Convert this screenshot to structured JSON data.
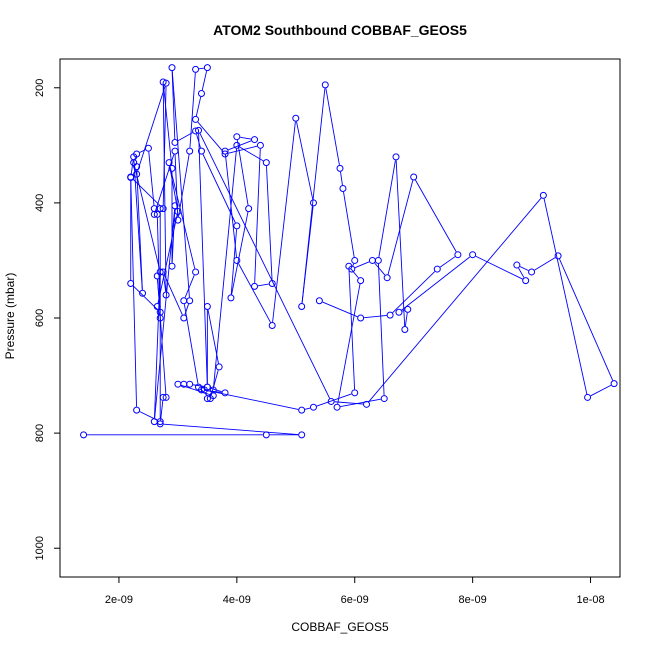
{
  "chart_data": {
    "type": "line",
    "title": "ATOM2 Southbound COBBAF_GEOS5",
    "xlabel": "COBBAF_GEOS5",
    "ylabel": "Pressure (mbar)",
    "xlim": [
      1e-09,
      1.05e-08
    ],
    "ylim": [
      1050,
      150
    ],
    "y_reversed": true,
    "x_ticks": [
      {
        "value": 2e-09,
        "label": "2e-09"
      },
      {
        "value": 4e-09,
        "label": "4e-09"
      },
      {
        "value": 6e-09,
        "label": "6e-09"
      },
      {
        "value": 8e-09,
        "label": "8e-09"
      },
      {
        "value": 1e-08,
        "label": "1e-08"
      }
    ],
    "y_ticks": [
      {
        "value": 200,
        "label": "200"
      },
      {
        "value": 400,
        "label": "400"
      },
      {
        "value": 600,
        "label": "600"
      },
      {
        "value": 800,
        "label": "800"
      },
      {
        "value": 1000,
        "label": "1000"
      }
    ],
    "grid": false,
    "legend": "none",
    "series_color": "#0000ff",
    "marker": "open-circle",
    "series": [
      {
        "x": [
          1.4e-09,
          4.5e-09,
          5.1e-09,
          2.7e-09,
          2.75e-09,
          2.8e-09,
          2.65e-09,
          2.7e-09,
          2.2e-09,
          2.2e-09,
          2.25e-09,
          2.4e-09,
          2.3e-09,
          2.3e-09,
          2.8e-09,
          2.75e-09,
          2.2e-09,
          2.3e-09,
          2.7e-09,
          2.7e-09,
          2.65e-09,
          2.7e-09,
          2.65e-09,
          3e-09,
          2.85e-09,
          3.3e-09,
          3.1e-09,
          3.35e-09,
          3.55e-09,
          3.7e-09,
          3.5e-09,
          3.5e-09,
          3.8e-09,
          3.4e-09,
          3.45e-09,
          5.1e-09,
          5.3e-09,
          6e-09,
          5.9e-09,
          6.1e-09,
          5.7e-09,
          6.5e-09,
          6.4e-09,
          6.7e-09,
          6.85e-09,
          6.9e-09,
          6.75e-09,
          8e-09,
          8.9e-09,
          8.75e-09,
          9e-09,
          9.45e-09,
          1.04e-08,
          9.95e-09,
          9.2e-09,
          6.2e-09,
          5.6e-09,
          3.35e-09,
          3.5e-09,
          3.2e-09,
          3.1e-09,
          3e-09,
          3.6e-09,
          3.5e-09,
          3.6e-09,
          4e-09,
          4.5e-09,
          4.6e-09,
          4.3e-09,
          4.4e-09,
          3.8e-09,
          3.3e-09,
          3.4e-09,
          3.5e-09,
          3.3e-09,
          3.2e-09,
          3e-09,
          2.95e-09,
          2.6e-09,
          2.6e-09,
          2.5e-09,
          2.3e-09,
          2.25e-09,
          2.7e-09,
          2.6e-09,
          2.95e-09,
          2.9e-09,
          2.9e-09,
          2.75e-09,
          2.8e-09,
          2.75e-09,
          3.1e-09,
          3.2e-09,
          2.9e-09,
          2.95e-09,
          3.3e-09,
          3.4e-09,
          4e-09,
          3.9e-09,
          4.2e-09,
          4e-09,
          4.3e-09,
          3.8e-09,
          4e-09,
          4.6e-09,
          5e-09,
          5.3e-09,
          5.1e-09,
          5.5e-09,
          5.75e-09,
          5.8e-09,
          6e-09,
          5.95e-09,
          6.3e-09,
          6.55e-09,
          7e-09,
          7.75e-09,
          7.4e-09,
          6.6e-09,
          6.1e-09,
          5.4e-09
        ],
        "y": [
          803,
          803,
          803,
          784,
          738,
          738,
          527,
          590,
          540,
          356,
          320,
          557,
          337,
          350,
          192,
          410,
          355,
          760,
          780,
          410,
          420,
          600,
          580,
          415,
          330,
          520,
          570,
          720,
          740,
          685,
          580,
          720,
          730,
          725,
          725,
          760,
          755,
          730,
          510,
          535,
          755,
          740,
          500,
          320,
          620,
          585,
          590,
          490,
          535,
          508,
          520,
          492,
          714,
          738,
          387,
          750,
          745,
          274,
          720,
          715,
          715,
          715,
          735,
          740,
          725,
          300,
          330,
          540,
          545,
          300,
          315,
          255,
          210,
          165,
          168,
          310,
          430,
          310,
          420,
          410,
          305,
          315,
          330,
          520,
          780,
          405,
          510,
          340,
          190,
          560,
          520,
          600,
          570,
          165,
          295,
          275,
          310,
          440,
          565,
          410,
          285,
          290,
          310,
          500,
          613,
          253,
          400,
          580,
          195,
          340,
          375,
          500,
          515,
          500,
          530,
          355,
          490,
          515,
          595,
          600,
          570
        ]
      }
    ]
  }
}
